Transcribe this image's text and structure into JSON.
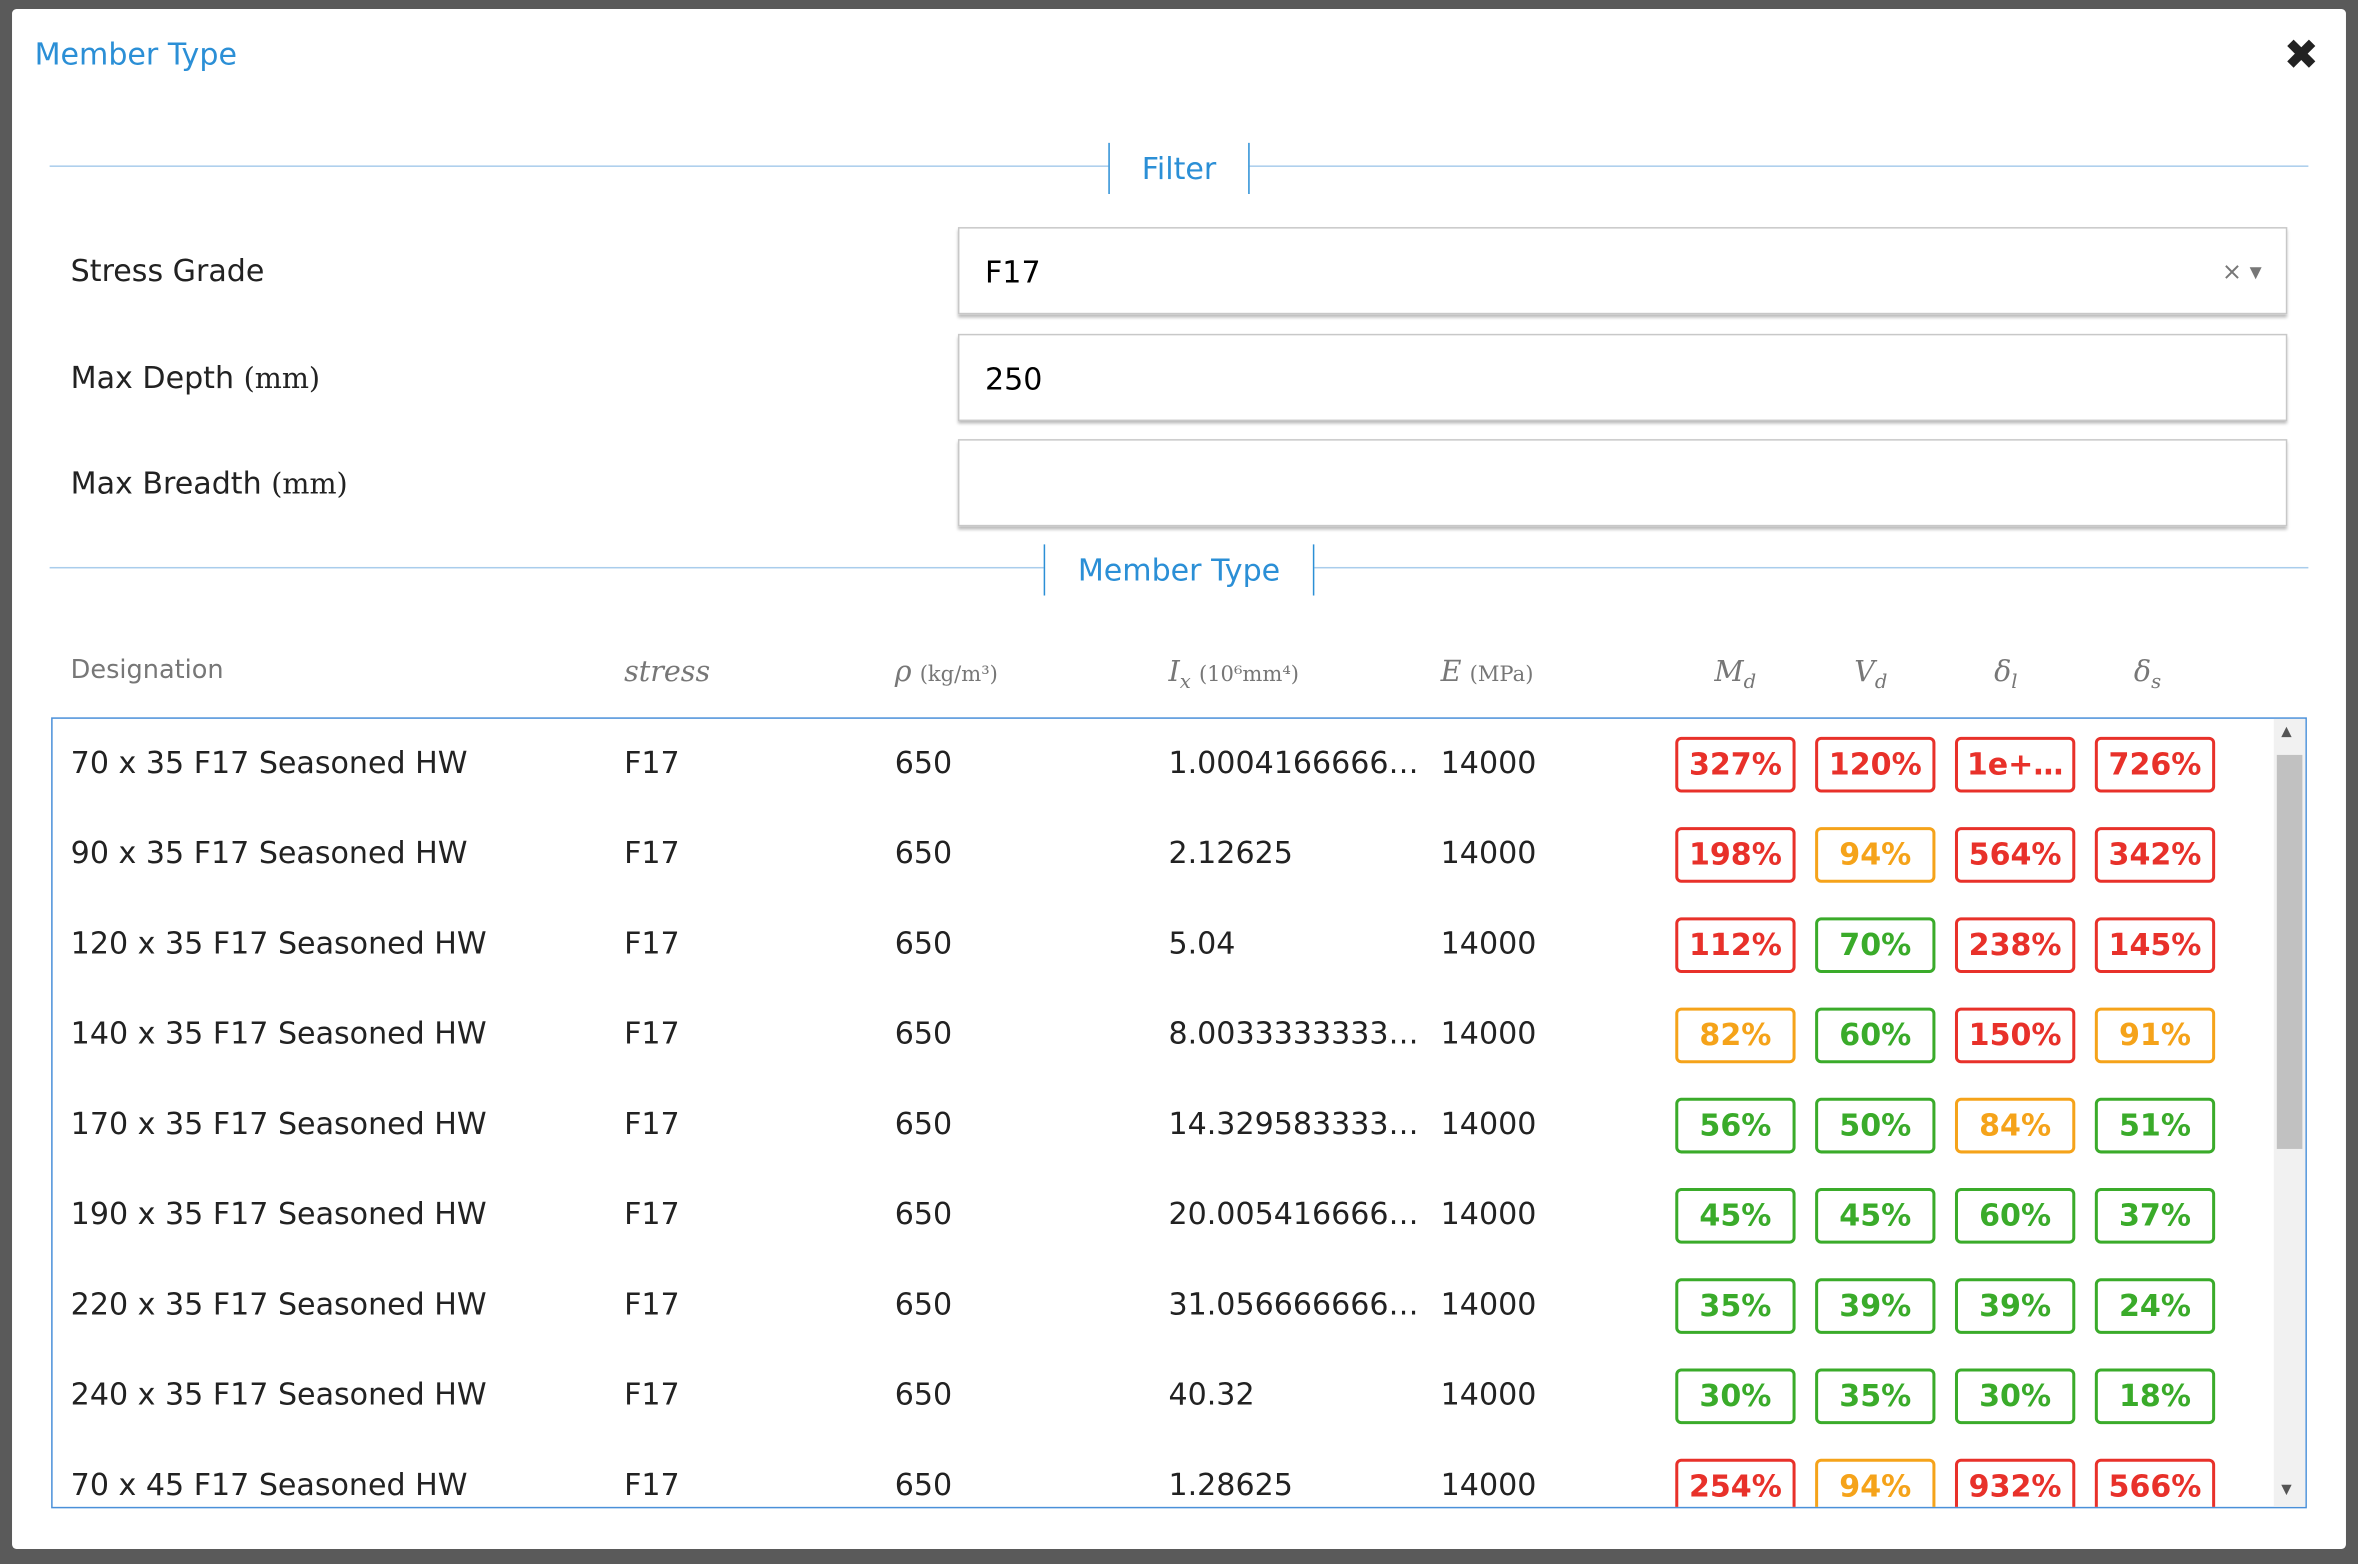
{
  "header": {
    "title": "Member Type"
  },
  "filter": {
    "label": "Filter",
    "fields": [
      {
        "label": "Stress Grade",
        "value": "F17"
      },
      {
        "label": "Max Depth",
        "unit": "(mm)",
        "value": "250"
      },
      {
        "label": "Max Breadth",
        "unit": "(mm)"
      }
    ]
  },
  "section": {
    "label": "Member Type"
  },
  "table": {
    "columns": [
      {
        "text": "Designation"
      },
      {
        "symbol": "stress"
      },
      {
        "symbol": "ρ",
        "unit": "(kg/m³)"
      },
      {
        "symbol": "I",
        "sub": "x",
        "unit": "(10⁶mm⁴)"
      },
      {
        "symbol": "E",
        "unit": "(MPa)"
      },
      {
        "symbol": "M",
        "sub": "d"
      },
      {
        "symbol": "V",
        "sub": "d"
      },
      {
        "symbol": "δ",
        "sub": "l"
      },
      {
        "symbol": "δ",
        "sub": "s"
      }
    ],
    "rows": [
      {
        "cells": [
          "70 x 35 F17 Seasoned HW",
          "F17",
          "650",
          "1.0004166666…",
          "14000"
        ],
        "ratios": [
          {
            "text": "327%",
            "status": "red"
          },
          {
            "text": "120%",
            "status": "red"
          },
          {
            "text": "1e+…",
            "status": "red"
          },
          {
            "text": "726%",
            "status": "red"
          }
        ]
      },
      {
        "cells": [
          "90 x 35 F17 Seasoned HW",
          "F17",
          "650",
          "2.12625",
          "14000"
        ],
        "ratios": [
          {
            "text": "198%",
            "status": "red"
          },
          {
            "text": "94%",
            "status": "orange"
          },
          {
            "text": "564%",
            "status": "red"
          },
          {
            "text": "342%",
            "status": "red"
          }
        ]
      },
      {
        "cells": [
          "120 x 35 F17 Seasoned HW",
          "F17",
          "650",
          "5.04",
          "14000"
        ],
        "ratios": [
          {
            "text": "112%",
            "status": "red"
          },
          {
            "text": "70%",
            "status": "green"
          },
          {
            "text": "238%",
            "status": "red"
          },
          {
            "text": "145%",
            "status": "red"
          }
        ]
      },
      {
        "cells": [
          "140 x 35 F17 Seasoned HW",
          "F17",
          "650",
          "8.0033333333…",
          "14000"
        ],
        "ratios": [
          {
            "text": "82%",
            "status": "orange"
          },
          {
            "text": "60%",
            "status": "green"
          },
          {
            "text": "150%",
            "status": "red"
          },
          {
            "text": "91%",
            "status": "orange"
          }
        ]
      },
      {
        "cells": [
          "170 x 35 F17 Seasoned HW",
          "F17",
          "650",
          "14.329583333…",
          "14000"
        ],
        "ratios": [
          {
            "text": "56%",
            "status": "green"
          },
          {
            "text": "50%",
            "status": "green"
          },
          {
            "text": "84%",
            "status": "orange"
          },
          {
            "text": "51%",
            "status": "green"
          }
        ]
      },
      {
        "cells": [
          "190 x 35 F17 Seasoned HW",
          "F17",
          "650",
          "20.005416666…",
          "14000"
        ],
        "ratios": [
          {
            "text": "45%",
            "status": "green"
          },
          {
            "text": "45%",
            "status": "green"
          },
          {
            "text": "60%",
            "status": "green"
          },
          {
            "text": "37%",
            "status": "green"
          }
        ]
      },
      {
        "cells": [
          "220 x 35 F17 Seasoned HW",
          "F17",
          "650",
          "31.056666666…",
          "14000"
        ],
        "ratios": [
          {
            "text": "35%",
            "status": "green"
          },
          {
            "text": "39%",
            "status": "green"
          },
          {
            "text": "39%",
            "status": "green"
          },
          {
            "text": "24%",
            "status": "green"
          }
        ]
      },
      {
        "cells": [
          "240 x 35 F17 Seasoned HW",
          "F17",
          "650",
          "40.32",
          "14000"
        ],
        "ratios": [
          {
            "text": "30%",
            "status": "green"
          },
          {
            "text": "35%",
            "status": "green"
          },
          {
            "text": "30%",
            "status": "green"
          },
          {
            "text": "18%",
            "status": "green"
          }
        ]
      },
      {
        "cells": [
          "70 x 45 F17 Seasoned HW",
          "F17",
          "650",
          "1.28625",
          "14000"
        ],
        "ratios": [
          {
            "text": "254%",
            "status": "red"
          },
          {
            "text": "94%",
            "status": "orange"
          },
          {
            "text": "932%",
            "status": "red"
          },
          {
            "text": "566%",
            "status": "red"
          }
        ]
      }
    ]
  }
}
